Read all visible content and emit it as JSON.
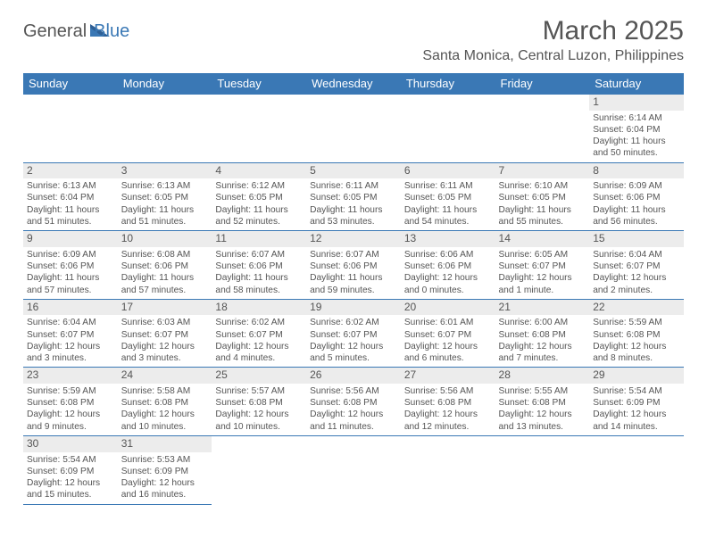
{
  "logo": {
    "part1": "General",
    "part2": "Blue"
  },
  "title": "March 2025",
  "location": "Santa Monica, Central Luzon, Philippines",
  "colors": {
    "header_bg": "#3a78b5",
    "header_text": "#ffffff",
    "border": "#3a78b5",
    "text": "#555555",
    "daynum_bg": "#ececec",
    "page_bg": "#ffffff"
  },
  "weekdays": [
    "Sunday",
    "Monday",
    "Tuesday",
    "Wednesday",
    "Thursday",
    "Friday",
    "Saturday"
  ],
  "weeks": [
    [
      null,
      null,
      null,
      null,
      null,
      null,
      {
        "n": "1",
        "sunrise": "Sunrise: 6:14 AM",
        "sunset": "Sunset: 6:04 PM",
        "day1": "Daylight: 11 hours",
        "day2": "and 50 minutes."
      }
    ],
    [
      {
        "n": "2",
        "sunrise": "Sunrise: 6:13 AM",
        "sunset": "Sunset: 6:04 PM",
        "day1": "Daylight: 11 hours",
        "day2": "and 51 minutes."
      },
      {
        "n": "3",
        "sunrise": "Sunrise: 6:13 AM",
        "sunset": "Sunset: 6:05 PM",
        "day1": "Daylight: 11 hours",
        "day2": "and 51 minutes."
      },
      {
        "n": "4",
        "sunrise": "Sunrise: 6:12 AM",
        "sunset": "Sunset: 6:05 PM",
        "day1": "Daylight: 11 hours",
        "day2": "and 52 minutes."
      },
      {
        "n": "5",
        "sunrise": "Sunrise: 6:11 AM",
        "sunset": "Sunset: 6:05 PM",
        "day1": "Daylight: 11 hours",
        "day2": "and 53 minutes."
      },
      {
        "n": "6",
        "sunrise": "Sunrise: 6:11 AM",
        "sunset": "Sunset: 6:05 PM",
        "day1": "Daylight: 11 hours",
        "day2": "and 54 minutes."
      },
      {
        "n": "7",
        "sunrise": "Sunrise: 6:10 AM",
        "sunset": "Sunset: 6:05 PM",
        "day1": "Daylight: 11 hours",
        "day2": "and 55 minutes."
      },
      {
        "n": "8",
        "sunrise": "Sunrise: 6:09 AM",
        "sunset": "Sunset: 6:06 PM",
        "day1": "Daylight: 11 hours",
        "day2": "and 56 minutes."
      }
    ],
    [
      {
        "n": "9",
        "sunrise": "Sunrise: 6:09 AM",
        "sunset": "Sunset: 6:06 PM",
        "day1": "Daylight: 11 hours",
        "day2": "and 57 minutes."
      },
      {
        "n": "10",
        "sunrise": "Sunrise: 6:08 AM",
        "sunset": "Sunset: 6:06 PM",
        "day1": "Daylight: 11 hours",
        "day2": "and 57 minutes."
      },
      {
        "n": "11",
        "sunrise": "Sunrise: 6:07 AM",
        "sunset": "Sunset: 6:06 PM",
        "day1": "Daylight: 11 hours",
        "day2": "and 58 minutes."
      },
      {
        "n": "12",
        "sunrise": "Sunrise: 6:07 AM",
        "sunset": "Sunset: 6:06 PM",
        "day1": "Daylight: 11 hours",
        "day2": "and 59 minutes."
      },
      {
        "n": "13",
        "sunrise": "Sunrise: 6:06 AM",
        "sunset": "Sunset: 6:06 PM",
        "day1": "Daylight: 12 hours",
        "day2": "and 0 minutes."
      },
      {
        "n": "14",
        "sunrise": "Sunrise: 6:05 AM",
        "sunset": "Sunset: 6:07 PM",
        "day1": "Daylight: 12 hours",
        "day2": "and 1 minute."
      },
      {
        "n": "15",
        "sunrise": "Sunrise: 6:04 AM",
        "sunset": "Sunset: 6:07 PM",
        "day1": "Daylight: 12 hours",
        "day2": "and 2 minutes."
      }
    ],
    [
      {
        "n": "16",
        "sunrise": "Sunrise: 6:04 AM",
        "sunset": "Sunset: 6:07 PM",
        "day1": "Daylight: 12 hours",
        "day2": "and 3 minutes."
      },
      {
        "n": "17",
        "sunrise": "Sunrise: 6:03 AM",
        "sunset": "Sunset: 6:07 PM",
        "day1": "Daylight: 12 hours",
        "day2": "and 3 minutes."
      },
      {
        "n": "18",
        "sunrise": "Sunrise: 6:02 AM",
        "sunset": "Sunset: 6:07 PM",
        "day1": "Daylight: 12 hours",
        "day2": "and 4 minutes."
      },
      {
        "n": "19",
        "sunrise": "Sunrise: 6:02 AM",
        "sunset": "Sunset: 6:07 PM",
        "day1": "Daylight: 12 hours",
        "day2": "and 5 minutes."
      },
      {
        "n": "20",
        "sunrise": "Sunrise: 6:01 AM",
        "sunset": "Sunset: 6:07 PM",
        "day1": "Daylight: 12 hours",
        "day2": "and 6 minutes."
      },
      {
        "n": "21",
        "sunrise": "Sunrise: 6:00 AM",
        "sunset": "Sunset: 6:08 PM",
        "day1": "Daylight: 12 hours",
        "day2": "and 7 minutes."
      },
      {
        "n": "22",
        "sunrise": "Sunrise: 5:59 AM",
        "sunset": "Sunset: 6:08 PM",
        "day1": "Daylight: 12 hours",
        "day2": "and 8 minutes."
      }
    ],
    [
      {
        "n": "23",
        "sunrise": "Sunrise: 5:59 AM",
        "sunset": "Sunset: 6:08 PM",
        "day1": "Daylight: 12 hours",
        "day2": "and 9 minutes."
      },
      {
        "n": "24",
        "sunrise": "Sunrise: 5:58 AM",
        "sunset": "Sunset: 6:08 PM",
        "day1": "Daylight: 12 hours",
        "day2": "and 10 minutes."
      },
      {
        "n": "25",
        "sunrise": "Sunrise: 5:57 AM",
        "sunset": "Sunset: 6:08 PM",
        "day1": "Daylight: 12 hours",
        "day2": "and 10 minutes."
      },
      {
        "n": "26",
        "sunrise": "Sunrise: 5:56 AM",
        "sunset": "Sunset: 6:08 PM",
        "day1": "Daylight: 12 hours",
        "day2": "and 11 minutes."
      },
      {
        "n": "27",
        "sunrise": "Sunrise: 5:56 AM",
        "sunset": "Sunset: 6:08 PM",
        "day1": "Daylight: 12 hours",
        "day2": "and 12 minutes."
      },
      {
        "n": "28",
        "sunrise": "Sunrise: 5:55 AM",
        "sunset": "Sunset: 6:08 PM",
        "day1": "Daylight: 12 hours",
        "day2": "and 13 minutes."
      },
      {
        "n": "29",
        "sunrise": "Sunrise: 5:54 AM",
        "sunset": "Sunset: 6:09 PM",
        "day1": "Daylight: 12 hours",
        "day2": "and 14 minutes."
      }
    ],
    [
      {
        "n": "30",
        "sunrise": "Sunrise: 5:54 AM",
        "sunset": "Sunset: 6:09 PM",
        "day1": "Daylight: 12 hours",
        "day2": "and 15 minutes."
      },
      {
        "n": "31",
        "sunrise": "Sunrise: 5:53 AM",
        "sunset": "Sunset: 6:09 PM",
        "day1": "Daylight: 12 hours",
        "day2": "and 16 minutes."
      },
      null,
      null,
      null,
      null,
      null
    ]
  ]
}
